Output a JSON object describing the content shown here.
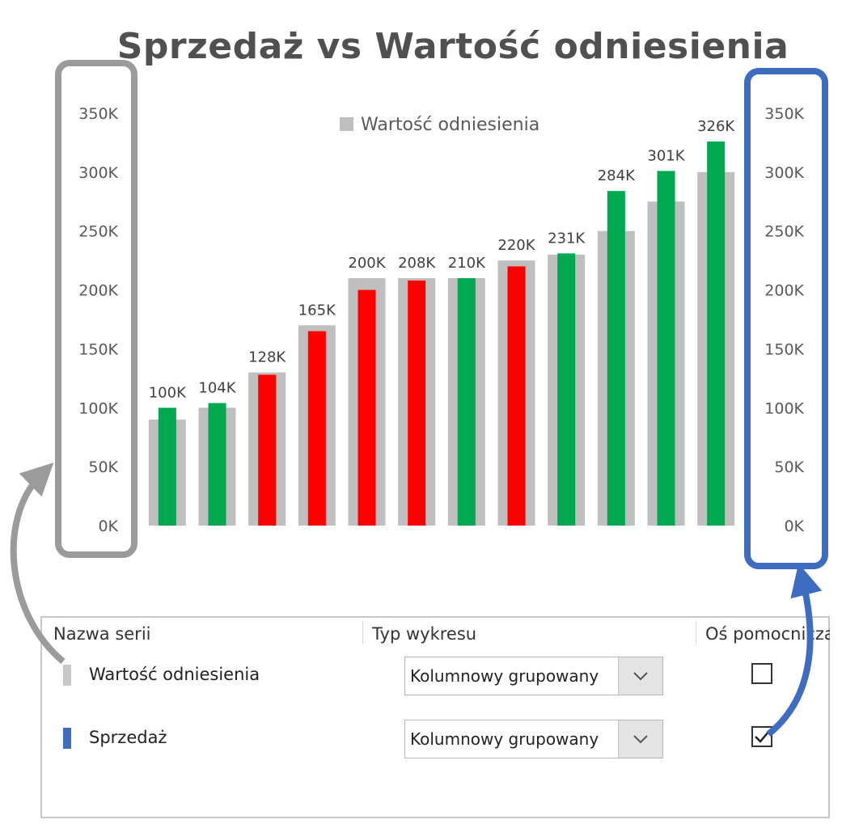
{
  "chart_data": {
    "type": "bar",
    "title": "Sprzedaż vs Wartość odniesienia",
    "categories": [
      "",
      "",
      "",
      "",
      "",
      "",
      "",
      "",
      "",
      "",
      "",
      ""
    ],
    "series": [
      {
        "name": "Wartość odniesienia",
        "values": [
          90,
          100,
          130,
          170,
          210,
          210,
          210,
          225,
          230,
          250,
          275,
          300
        ]
      },
      {
        "name": "Sprzedaż",
        "values": [
          100,
          104,
          128,
          165,
          200,
          208,
          210,
          220,
          231,
          284,
          301,
          326
        ],
        "labels": [
          "100K",
          "104K",
          "128K",
          "165K",
          "200K",
          "208K",
          "210K",
          "220K",
          "231K",
          "284K",
          "301K",
          "326K"
        ]
      }
    ],
    "yticks": [
      "0K",
      "50K",
      "100K",
      "150K",
      "200K",
      "250K",
      "300K",
      "350K"
    ],
    "ylim": [
      0,
      350
    ],
    "legend": {
      "label": "Wartość odniesienia",
      "placement": "top-center"
    },
    "secondary_axis": true,
    "grid": false,
    "colors": {
      "reference": "#bfbfbf",
      "above": "#00a94f",
      "below": "#ff0000"
    }
  },
  "panel": {
    "headers": {
      "name": "Nazwa serii",
      "type": "Typ wykresu",
      "secondary": "Oś pomocnicza"
    },
    "rows": [
      {
        "name": "Wartość odniesienia",
        "chart_type": "Kolumnowy grupowany",
        "secondary": false,
        "color": "#c8c8c8"
      },
      {
        "name": "Sprzedaż",
        "chart_type": "Kolumnowy grupowany",
        "secondary": true,
        "color": "#3d6cc0"
      }
    ]
  },
  "annotations": {
    "left_highlight_color": "#9b9b9b",
    "right_highlight_color": "#3d6cc0"
  }
}
